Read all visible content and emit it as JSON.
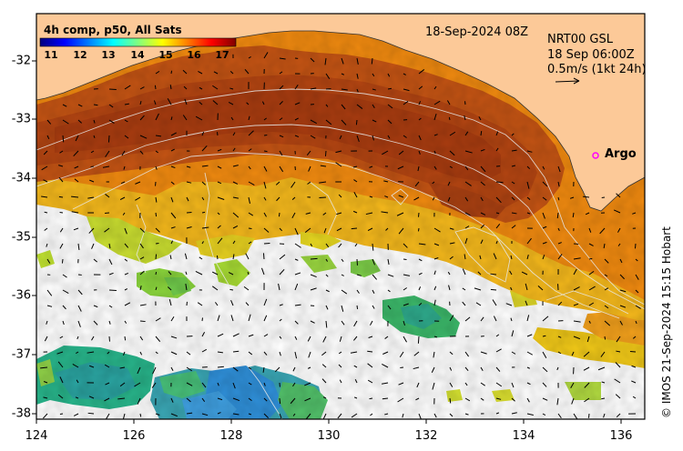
{
  "map": {
    "timestamp": "18-Sep-2024 08Z",
    "longitude_ticks": [
      "124",
      "126",
      "128",
      "130",
      "132",
      "134",
      "136"
    ],
    "latitude_ticks": [
      "-32",
      "-33",
      "-34",
      "-35",
      "-36",
      "-37",
      "-38"
    ],
    "colorbar": {
      "title": "4h comp, p50, All Sats",
      "ticks": [
        "11",
        "12",
        "13",
        "14",
        "15",
        "16",
        "17"
      ],
      "stops": [
        "#00007f",
        "#0000ff",
        "#0080ff",
        "#00ffff",
        "#80ff80",
        "#ffff00",
        "#ff8000",
        "#ff0000",
        "#800000"
      ]
    },
    "legend": {
      "product": "NRT00 GSL",
      "time": "18 Sep 06:00Z",
      "scale": "0.5m/s (1kt 24h)"
    },
    "argo": {
      "label": "Argo",
      "marker_color": "#ff00ff"
    },
    "credit": "© IMOS 21-Sep-2024 15:15 Hobart",
    "land_color": "#fcc998",
    "icons": {
      "argo_marker": "circle",
      "scale_arrow": "arrow"
    }
  }
}
